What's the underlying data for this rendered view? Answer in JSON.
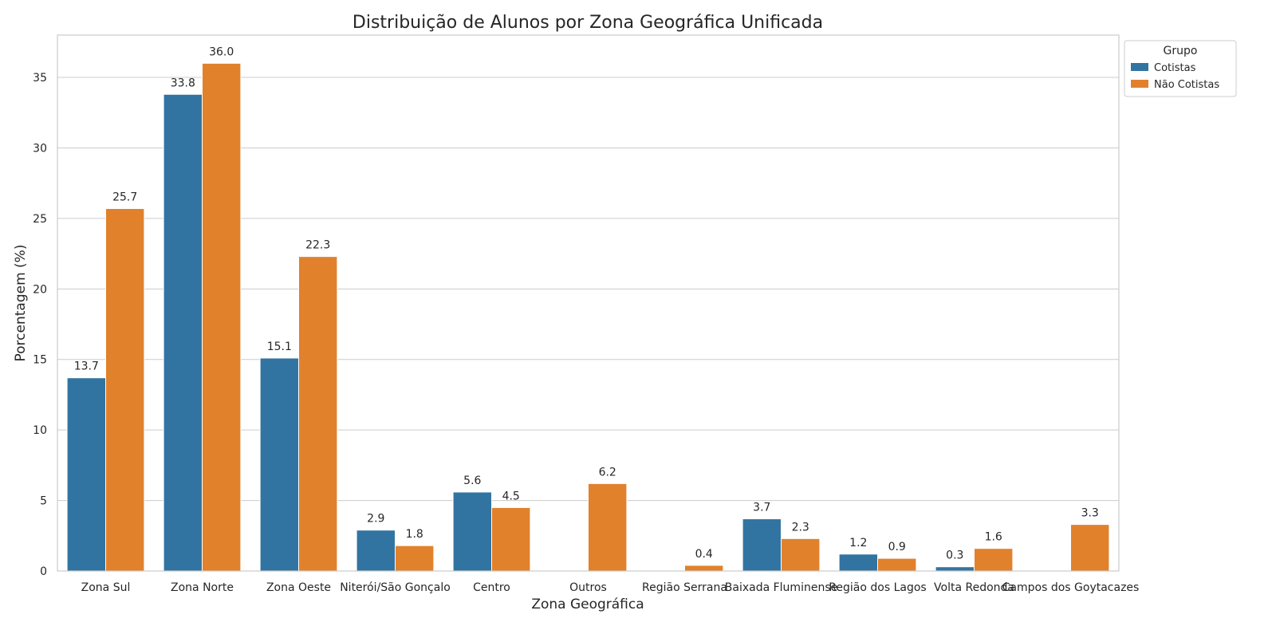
{
  "chart_data": {
    "type": "bar",
    "title": "Distribuição de Alunos por Zona Geográfica Unificada",
    "xlabel": "Zona Geográfica",
    "ylabel": "Porcentagem (%)",
    "ylim": [
      0,
      38
    ],
    "yticks": [
      0,
      5,
      10,
      15,
      20,
      25,
      30,
      35
    ],
    "grid": "horizontal",
    "categories": [
      "Zona Sul",
      "Zona Norte",
      "Zona Oeste",
      "Niterói/São Gonçalo",
      "Centro",
      "Outros",
      "Região Serrana",
      "Baixada Fluminense",
      "Região dos Lagos",
      "Volta Redonda",
      "Campos dos Goytacazes"
    ],
    "series": [
      {
        "name": "Cotistas",
        "color": "#3274a1",
        "values": [
          13.7,
          33.8,
          15.1,
          2.9,
          5.6,
          null,
          null,
          3.7,
          1.2,
          0.3,
          null
        ]
      },
      {
        "name": "Não Cotistas",
        "color": "#e1812c",
        "values": [
          25.7,
          36.0,
          22.3,
          1.8,
          4.5,
          6.2,
          0.4,
          2.3,
          0.9,
          1.6,
          3.3
        ]
      }
    ],
    "legend": {
      "title": "Grupo",
      "placement": "outside-top-right"
    }
  }
}
